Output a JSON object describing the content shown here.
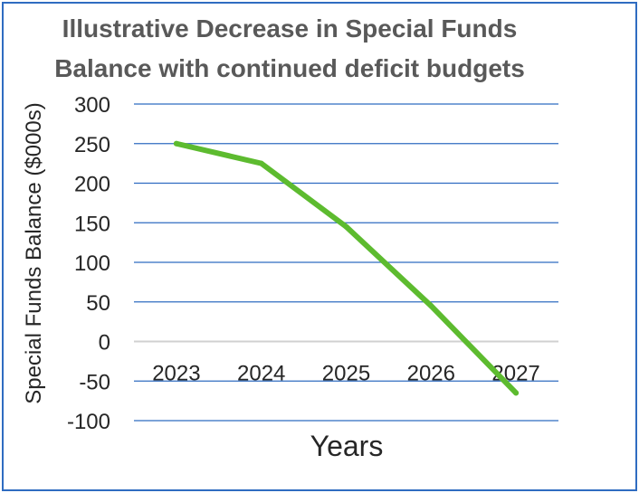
{
  "chart_data": {
    "type": "line",
    "title": "Illustrative Decrease in Special Funds Balance with continued deficit budgets",
    "xlabel": "Years",
    "ylabel": "Special Funds Balance ($000s)",
    "categories": [
      "2023",
      "2024",
      "2025",
      "2026",
      "2027"
    ],
    "series": [
      {
        "values": [
          250,
          225,
          145,
          45,
          -65
        ]
      }
    ],
    "ylim": [
      -100,
      300
    ],
    "yticks": [
      300,
      250,
      200,
      150,
      100,
      50,
      0,
      -50,
      -100
    ],
    "grid": true,
    "legend": "none",
    "colors": {
      "line": "#5dbb2f",
      "grid": "#2f6cc1",
      "zero_axis": "#d0d0d0",
      "border": "#2f6cc1",
      "title": "#595959"
    }
  }
}
